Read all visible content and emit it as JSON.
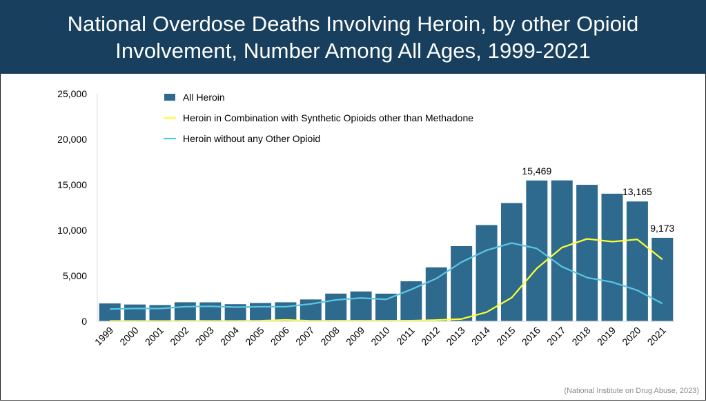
{
  "header": {
    "title_line1": "National Overdose Deaths Involving Heroin, by other Opioid",
    "title_line2": "Involvement, Number Among All Ages, 1999-2021"
  },
  "source": "(National Institute on Drug Abuse, 2023)",
  "colors": {
    "header_bg": "#18405e",
    "bar": "#2e6a8e",
    "combo_line": "#ffff33",
    "no_other_line": "#5bc6e0"
  },
  "chart_data": {
    "type": "bar",
    "title": "National Overdose Deaths Involving Heroin, by other Opioid Involvement, Number Among All Ages, 1999-2021",
    "xlabel": "",
    "ylabel": "",
    "ylim": [
      0,
      25000
    ],
    "yticks": [
      "0",
      "5,000",
      "10,000",
      "15,000",
      "20,000",
      "25,000"
    ],
    "ytick_values": [
      0,
      5000,
      10000,
      15000,
      20000,
      25000
    ],
    "categories": [
      "1999",
      "2000",
      "2001",
      "2002",
      "2003",
      "2004",
      "2005",
      "2006",
      "2007",
      "2008",
      "2009",
      "2010",
      "2011",
      "2012",
      "2013",
      "2014",
      "2015",
      "2016",
      "2017",
      "2018",
      "2019",
      "2020",
      "2021"
    ],
    "legend_position": "top-left",
    "grid": false,
    "series": [
      {
        "name": "All Heroin",
        "kind": "bar",
        "values": [
          1960,
          1842,
          1779,
          2089,
          2080,
          1878,
          2009,
          2088,
          2399,
          3041,
          3278,
          3036,
          4397,
          5925,
          8257,
          10574,
          12989,
          15469,
          15482,
          14996,
          14019,
          13165,
          9173
        ]
      },
      {
        "name": "Heroin in Combination with Synthetic Opioids other than Methadone",
        "kind": "line",
        "values": [
          40,
          35,
          30,
          45,
          40,
          40,
          55,
          150,
          45,
          50,
          55,
          60,
          70,
          140,
          250,
          1000,
          2600,
          5800,
          8100,
          9050,
          8750,
          9000,
          6800
        ]
      },
      {
        "name": "Heroin without any Other Opioid",
        "kind": "line",
        "values": [
          1350,
          1400,
          1400,
          1600,
          1650,
          1550,
          1600,
          1600,
          1900,
          2350,
          2550,
          2400,
          3500,
          4700,
          6500,
          7800,
          8600,
          8000,
          6000,
          4800,
          4300,
          3400,
          1950
        ]
      }
    ],
    "data_labels": [
      {
        "category": "2016",
        "text": "15,469"
      },
      {
        "category": "2020",
        "text": "13,165"
      },
      {
        "category": "2021",
        "text": "9,173"
      }
    ]
  }
}
